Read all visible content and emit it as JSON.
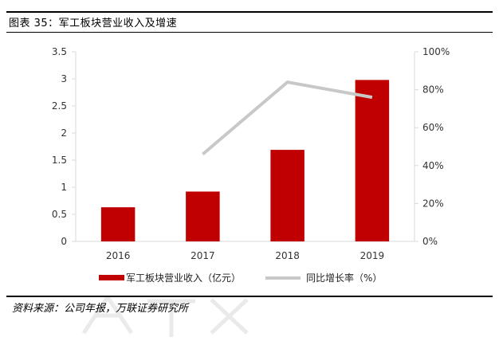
{
  "figure_caption": "图表 35：军工板块营业收入及增速",
  "source_note": "资料来源：公司年报，万联证券研究所",
  "colors": {
    "bar": "#c00000",
    "line": "#c8c8c8",
    "rule": "#000000",
    "axis": "#d9d9d9"
  },
  "chart_data": {
    "type": "bar+line",
    "title": "",
    "categories": [
      "2016",
      "2017",
      "2018",
      "2019"
    ],
    "series": [
      {
        "name": "军工板块营业收入（亿元）",
        "type": "bar",
        "axis": "left",
        "values": [
          0.63,
          0.92,
          1.69,
          2.98
        ]
      },
      {
        "name": "同比增长率（%）",
        "type": "line",
        "axis": "right",
        "values": [
          null,
          46,
          84,
          76
        ]
      }
    ],
    "y_left": {
      "range": [
        0,
        3.5
      ],
      "ticks": [
        "0",
        "0.5",
        "1",
        "1.5",
        "2",
        "2.5",
        "3",
        "3.5"
      ]
    },
    "y_right": {
      "range": [
        0,
        100
      ],
      "ticks": [
        "0%",
        "20%",
        "40%",
        "60%",
        "80%",
        "100%"
      ]
    },
    "grid": false,
    "legend_position": "bottom"
  }
}
